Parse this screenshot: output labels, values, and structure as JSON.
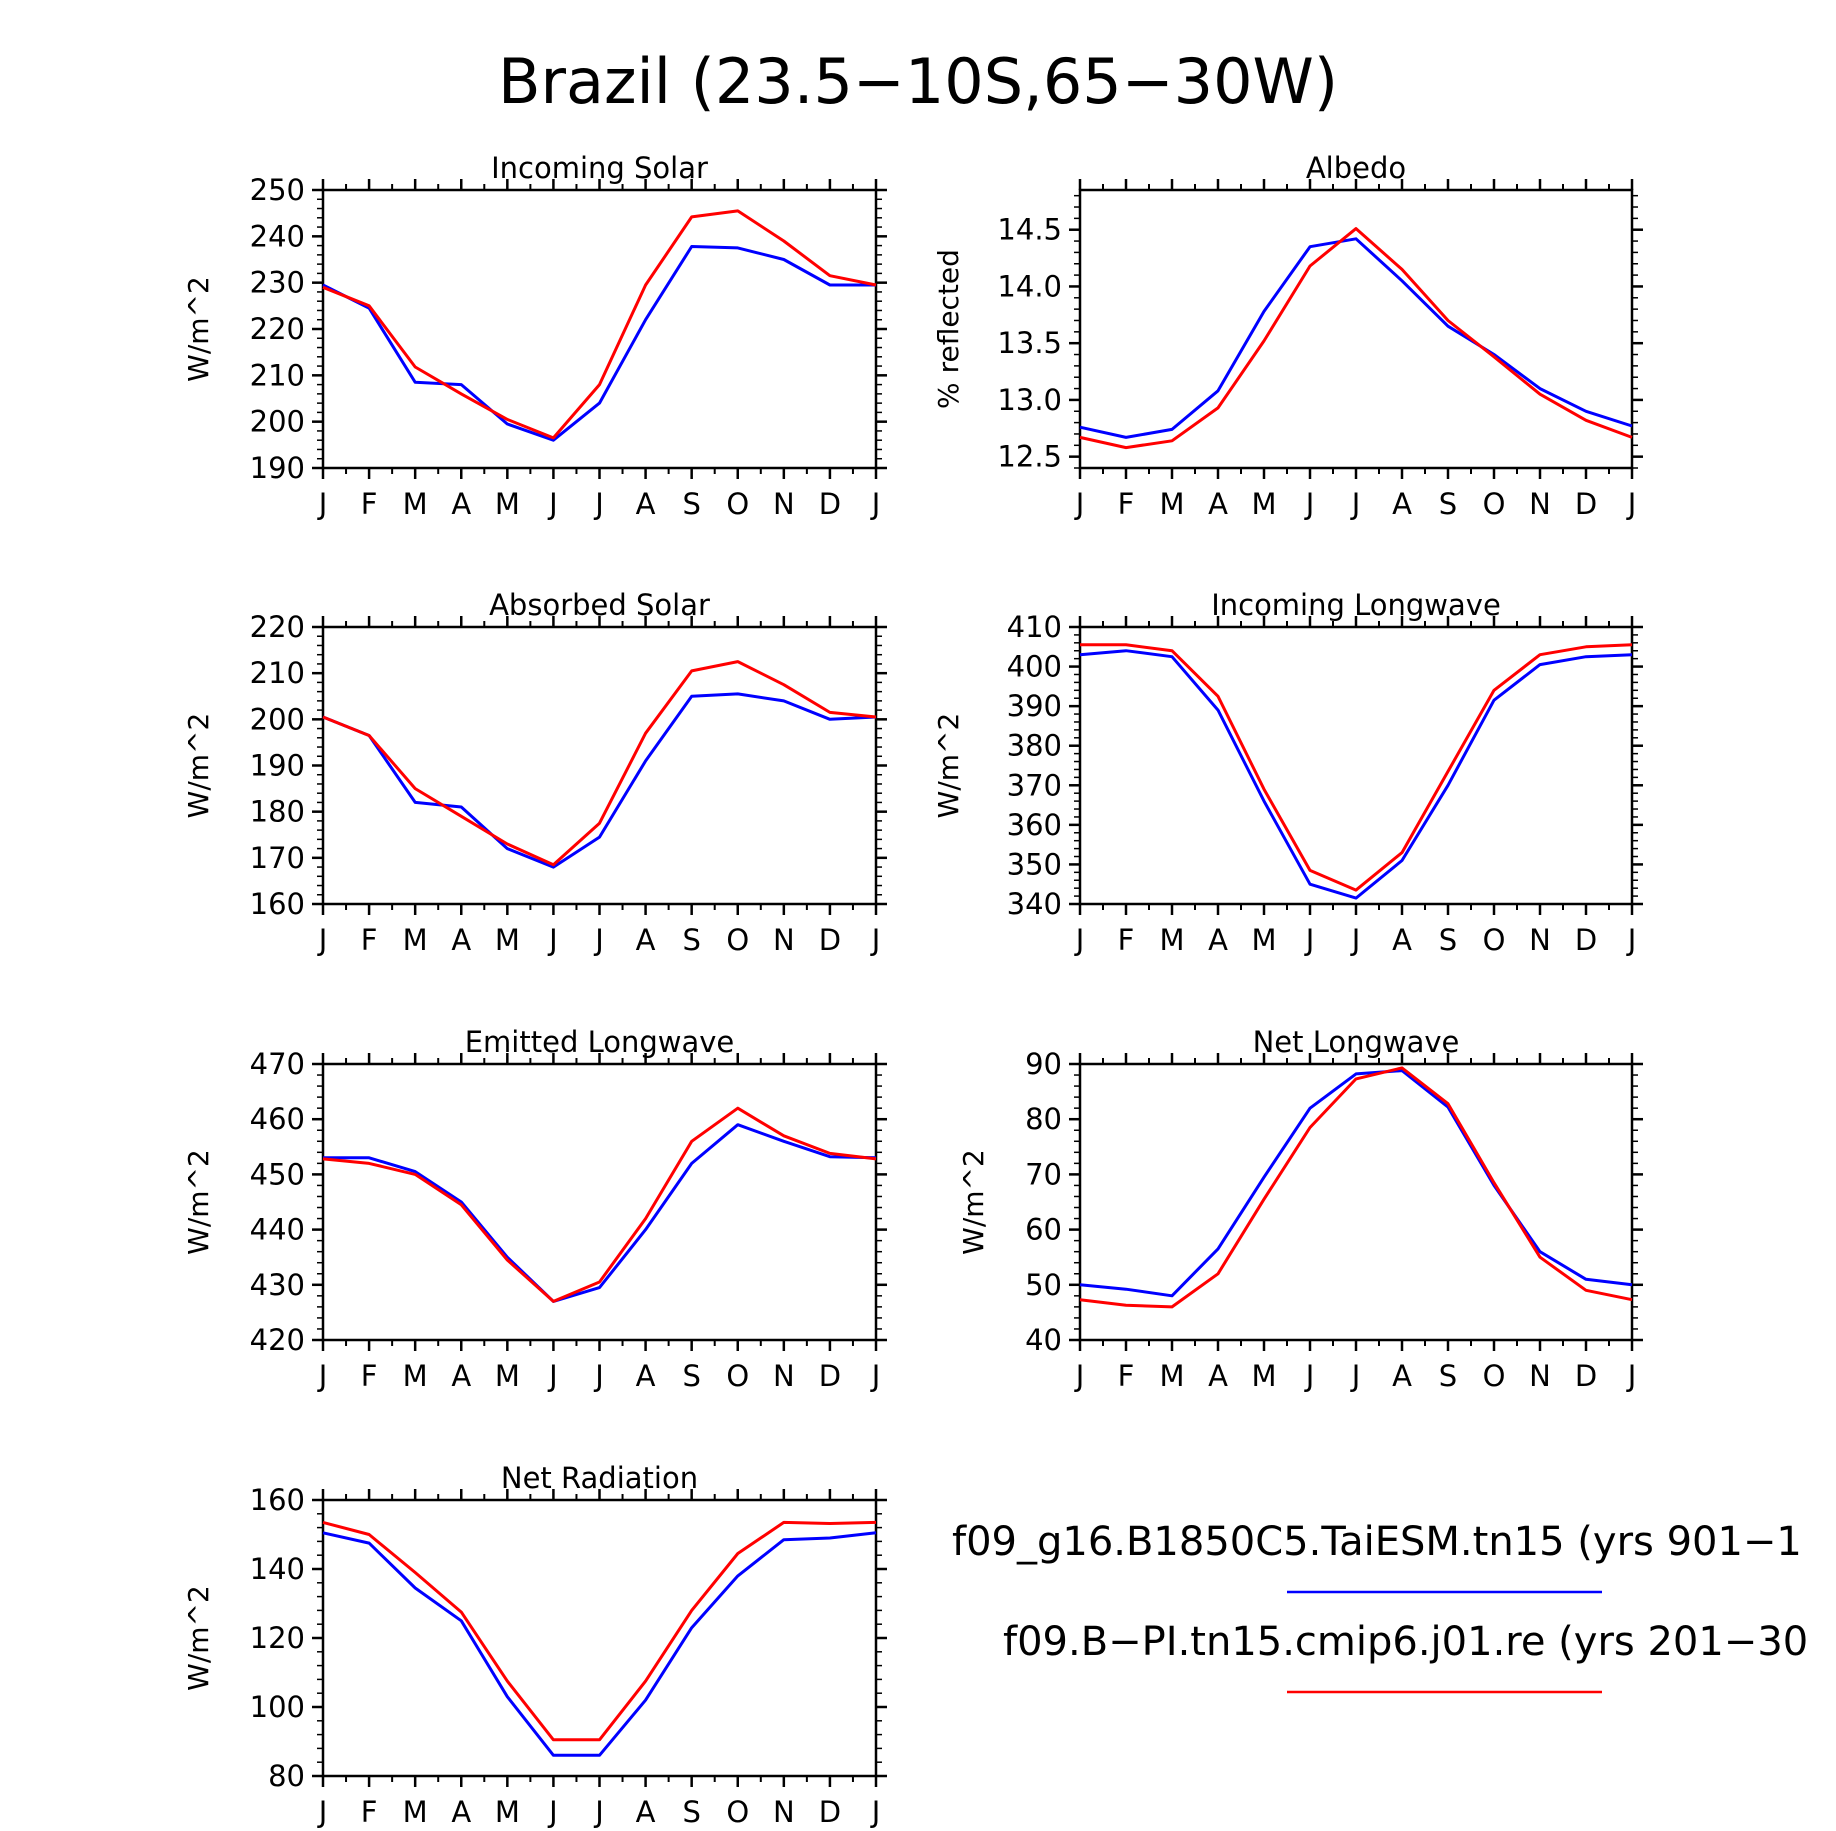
{
  "title": "Brazil (23.5−10S,65−30W)",
  "months": [
    "J",
    "F",
    "M",
    "A",
    "M",
    "J",
    "J",
    "A",
    "S",
    "O",
    "N",
    "D",
    "J"
  ],
  "colors": {
    "series_1": "#0000ff",
    "series_2": "#ff0000"
  },
  "legend": [
    {
      "label": "f09_g16.B1850C5.TaiESM.tn15 (yrs 901−1",
      "color": "#0000ff"
    },
    {
      "label": "f09.B−PI.tn15.cmip6.j01.re (yrs 201−30",
      "color": "#ff0000"
    }
  ],
  "chart_data": [
    {
      "type": "line",
      "title": "Incoming Solar",
      "ylabel": "W/m^2",
      "ylim": [
        190,
        250
      ],
      "yticks": [
        "190",
        "200",
        "210",
        "220",
        "230",
        "240",
        "250"
      ],
      "yticks_values": [
        190,
        200,
        210,
        220,
        230,
        240,
        250
      ],
      "x": [
        "J",
        "F",
        "M",
        "A",
        "M",
        "J",
        "J",
        "A",
        "S",
        "O",
        "N",
        "D",
        "J"
      ],
      "series": [
        {
          "values": [
            229.5,
            224.5,
            208.5,
            208.0,
            199.5,
            196.0,
            204.0,
            222.0,
            237.8,
            237.5,
            235.0,
            229.5,
            229.5
          ]
        },
        {
          "values": [
            229.0,
            225.0,
            211.8,
            206.0,
            200.5,
            196.5,
            208.0,
            229.5,
            244.2,
            245.5,
            239.0,
            231.5,
            229.5
          ]
        }
      ]
    },
    {
      "type": "line",
      "title": "Albedo",
      "ylabel": "% reflected",
      "ylim": [
        12.4,
        14.85
      ],
      "yticks": [
        "12.5",
        "13.0",
        "13.5",
        "14.0",
        "14.5"
      ],
      "yticks_values": [
        12.5,
        13.0,
        13.5,
        14.0,
        14.5
      ],
      "x": [
        "J",
        "F",
        "M",
        "A",
        "M",
        "J",
        "J",
        "A",
        "S",
        "O",
        "N",
        "D",
        "J"
      ],
      "series": [
        {
          "values": [
            12.76,
            12.67,
            12.74,
            13.08,
            13.78,
            14.35,
            14.42,
            14.05,
            13.65,
            13.4,
            13.1,
            12.9,
            12.77
          ]
        },
        {
          "values": [
            12.67,
            12.58,
            12.64,
            12.93,
            13.52,
            14.18,
            14.51,
            14.15,
            13.7,
            13.38,
            13.05,
            12.82,
            12.67
          ]
        }
      ]
    },
    {
      "type": "line",
      "title": "Absorbed Solar",
      "ylabel": "W/m^2",
      "ylim": [
        160,
        220
      ],
      "yticks": [
        "160",
        "170",
        "180",
        "190",
        "200",
        "210",
        "220"
      ],
      "yticks_values": [
        160,
        170,
        180,
        190,
        200,
        210,
        220
      ],
      "x": [
        "J",
        "F",
        "M",
        "A",
        "M",
        "J",
        "J",
        "A",
        "S",
        "O",
        "N",
        "D",
        "J"
      ],
      "series": [
        {
          "values": [
            200.5,
            196.5,
            182.0,
            181.0,
            172.0,
            168.0,
            174.5,
            191.0,
            205.0,
            205.5,
            204.0,
            200.0,
            200.5
          ]
        },
        {
          "values": [
            200.5,
            196.5,
            185.0,
            179.0,
            173.0,
            168.5,
            177.5,
            197.0,
            210.5,
            212.5,
            207.5,
            201.5,
            200.5
          ]
        }
      ]
    },
    {
      "type": "line",
      "title": "Incoming Longwave",
      "ylabel": "W/m^2",
      "ylim": [
        340,
        410
      ],
      "yticks": [
        "340",
        "350",
        "360",
        "370",
        "380",
        "390",
        "400",
        "410"
      ],
      "yticks_values": [
        340,
        350,
        360,
        370,
        380,
        390,
        400,
        410
      ],
      "x": [
        "J",
        "F",
        "M",
        "A",
        "M",
        "J",
        "J",
        "A",
        "S",
        "O",
        "N",
        "D",
        "J"
      ],
      "series": [
        {
          "values": [
            403.0,
            404.0,
            402.5,
            389.0,
            366.0,
            345.0,
            341.5,
            351.0,
            370.0,
            391.5,
            400.5,
            402.5,
            403.0
          ]
        },
        {
          "values": [
            405.5,
            405.5,
            404.0,
            392.5,
            369.0,
            348.5,
            343.5,
            353.0,
            373.5,
            394.0,
            403.0,
            405.0,
            405.5
          ]
        }
      ]
    },
    {
      "type": "line",
      "title": "Emitted Longwave",
      "ylabel": "W/m^2",
      "ylim": [
        420,
        470
      ],
      "yticks": [
        "420",
        "430",
        "440",
        "450",
        "460",
        "470"
      ],
      "yticks_values": [
        420,
        430,
        440,
        450,
        460,
        470
      ],
      "x": [
        "J",
        "F",
        "M",
        "A",
        "M",
        "J",
        "J",
        "A",
        "S",
        "O",
        "N",
        "D",
        "J"
      ],
      "series": [
        {
          "values": [
            453.0,
            453.0,
            450.5,
            445.0,
            435.0,
            427.0,
            429.5,
            440.0,
            452.0,
            459.0,
            456.0,
            453.2,
            453.0
          ]
        },
        {
          "values": [
            452.8,
            452.0,
            450.0,
            444.5,
            434.5,
            427.0,
            430.5,
            442.0,
            456.0,
            462.0,
            457.0,
            453.8,
            452.8
          ]
        }
      ]
    },
    {
      "type": "line",
      "title": "Net Longwave",
      "ylabel": "W/m^2",
      "ylim": [
        40,
        90
      ],
      "yticks": [
        "40",
        "50",
        "60",
        "70",
        "80",
        "90"
      ],
      "yticks_values": [
        40,
        50,
        60,
        70,
        80,
        90
      ],
      "x": [
        "J",
        "F",
        "M",
        "A",
        "M",
        "J",
        "J",
        "A",
        "S",
        "O",
        "N",
        "D",
        "J"
      ],
      "series": [
        {
          "values": [
            50.0,
            49.2,
            48.0,
            56.5,
            69.5,
            82.0,
            88.2,
            88.8,
            82.2,
            68.0,
            56.0,
            51.0,
            50.0
          ]
        },
        {
          "values": [
            47.3,
            46.3,
            46.0,
            52.0,
            65.5,
            78.5,
            87.3,
            89.3,
            82.8,
            68.5,
            55.0,
            49.0,
            47.3
          ]
        }
      ]
    },
    {
      "type": "line",
      "title": "Net Radiation",
      "ylabel": "W/m^2",
      "ylim": [
        80,
        160
      ],
      "yticks": [
        "80",
        "100",
        "120",
        "140",
        "160"
      ],
      "yticks_values": [
        80,
        100,
        120,
        140,
        160
      ],
      "x": [
        "J",
        "F",
        "M",
        "A",
        "M",
        "J",
        "J",
        "A",
        "S",
        "O",
        "N",
        "D",
        "J"
      ],
      "series": [
        {
          "values": [
            150.5,
            147.5,
            134.5,
            125.0,
            103.0,
            86.0,
            86.0,
            102.0,
            123.0,
            138.0,
            148.5,
            149.0,
            150.5
          ]
        },
        {
          "values": [
            153.5,
            150.0,
            139.0,
            127.5,
            107.5,
            90.5,
            90.5,
            107.5,
            128.0,
            144.5,
            153.5,
            153.2,
            153.5
          ]
        }
      ]
    }
  ]
}
